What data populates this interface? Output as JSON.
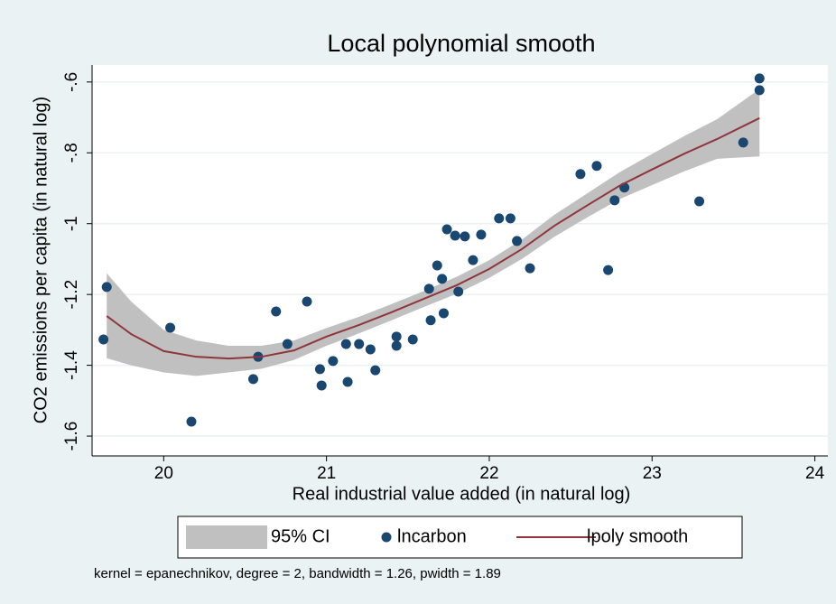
{
  "chart_data": {
    "type": "scatter",
    "title": "Local polynomial smooth",
    "xlabel": "Real industrial value added (in natural log)",
    "ylabel": "CO2 emissions per capita (in natural log)",
    "note": "kernel = epanechnikov, degree = 2, bandwidth = 1.26, pwidth = 1.89",
    "xlim": [
      19.56,
      24.08
    ],
    "ylim": [
      -1.656,
      -0.552
    ],
    "xticks": [
      20,
      21,
      22,
      23,
      24
    ],
    "yticks": [
      {
        "value": -0.6,
        "label": "-.6"
      },
      {
        "value": -0.8,
        "label": "-.8"
      },
      {
        "value": -1,
        "label": "-1"
      },
      {
        "value": -1.2,
        "label": "-1.2"
      },
      {
        "value": -1.4,
        "label": "-1.4"
      },
      {
        "value": -1.6,
        "label": "-1.6"
      }
    ],
    "grid": true,
    "legend": "bottom",
    "series": [
      {
        "name": "95% CI",
        "type": "area",
        "color": "#c0c0c0",
        "x": [
          19.65,
          19.8,
          20.0,
          20.2,
          20.4,
          20.6,
          20.8,
          21.0,
          21.2,
          21.4,
          21.6,
          21.8,
          22.0,
          22.2,
          22.4,
          22.6,
          22.8,
          23.0,
          23.2,
          23.4,
          23.66
        ],
        "upper": [
          -1.14,
          -1.22,
          -1.3,
          -1.33,
          -1.345,
          -1.345,
          -1.33,
          -1.295,
          -1.263,
          -1.227,
          -1.19,
          -1.15,
          -1.103,
          -1.045,
          -0.975,
          -0.915,
          -0.855,
          -0.803,
          -0.752,
          -0.705,
          -0.62
        ],
        "lower": [
          -1.38,
          -1.4,
          -1.42,
          -1.43,
          -1.42,
          -1.41,
          -1.385,
          -1.345,
          -1.31,
          -1.273,
          -1.235,
          -1.198,
          -1.153,
          -1.1,
          -1.037,
          -0.983,
          -0.931,
          -0.891,
          -0.852,
          -0.817,
          -0.81
        ]
      },
      {
        "name": "lncarbon",
        "type": "scatter",
        "color": "#1a476f",
        "x": [
          19.63,
          19.65,
          20.04,
          20.17,
          20.55,
          20.58,
          20.69,
          20.76,
          20.88,
          20.96,
          20.97,
          21.04,
          21.12,
          21.13,
          21.2,
          21.27,
          21.3,
          21.43,
          21.43,
          21.53,
          21.63,
          21.64,
          21.68,
          21.71,
          21.72,
          21.74,
          21.79,
          21.81,
          21.85,
          21.9,
          21.95,
          22.06,
          22.13,
          22.17,
          22.25,
          22.56,
          22.66,
          22.73,
          22.77,
          22.83,
          23.29,
          23.56,
          23.66,
          23.66
        ],
        "values": [
          -1.327,
          -1.179,
          -1.294,
          -1.559,
          -1.439,
          -1.376,
          -1.248,
          -1.34,
          -1.22,
          -1.411,
          -1.457,
          -1.388,
          -1.34,
          -1.447,
          -1.34,
          -1.355,
          -1.414,
          -1.319,
          -1.345,
          -1.327,
          -1.184,
          -1.273,
          -1.118,
          -1.156,
          -1.253,
          -1.016,
          -1.034,
          -1.192,
          -1.036,
          -1.103,
          -1.031,
          -0.985,
          -0.985,
          -1.049,
          -1.126,
          -0.86,
          -0.837,
          -1.131,
          -0.934,
          -0.898,
          -0.937,
          -0.771,
          -0.623,
          -0.59
        ]
      },
      {
        "name": "lpoly smooth",
        "type": "line",
        "color": "#90353b",
        "x": [
          19.65,
          19.8,
          20.0,
          20.2,
          20.4,
          20.6,
          20.8,
          21.0,
          21.2,
          21.4,
          21.6,
          21.8,
          22.0,
          22.2,
          22.4,
          22.6,
          22.8,
          23.0,
          23.2,
          23.4,
          23.66
        ],
        "values": [
          -1.261,
          -1.312,
          -1.36,
          -1.376,
          -1.381,
          -1.376,
          -1.358,
          -1.319,
          -1.286,
          -1.25,
          -1.212,
          -1.174,
          -1.128,
          -1.072,
          -1.006,
          -0.949,
          -0.893,
          -0.847,
          -0.802,
          -0.761,
          -0.702
        ]
      }
    ]
  }
}
